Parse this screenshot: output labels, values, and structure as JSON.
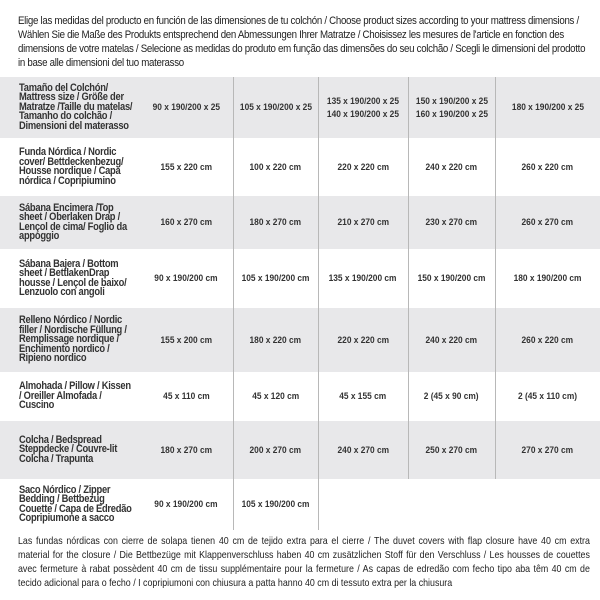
{
  "intro": "Elige las medidas del producto en función de las dimensiones de tu colchón / Choose product sizes according to your mattress dimensions / Wählen Sie die Maße des Produkts entsprechend den Abmessungen Ihrer Matratze / Choisissez les mesures de l'article en fonction des dimensions de votre matelas / Selecione as medidas do produto em função das dimensões do seu colchão / Scegli le dimensioni del prodotto in base alle dimensioni del tuo materasso",
  "table": {
    "header": {
      "label": "Tamaño del Colchón/ Mattress size / Größe der Matratze /Taille du matelas/ Tamanho do colchão / Dimensioni del materasso",
      "cols": [
        "90 x 190/200 x 25",
        "105 x 190/200 x 25",
        "135 x 190/200 x 25\n140 x 190/200 x 25",
        "150 x 190/200 x 25\n160 x 190/200 x 25",
        "180 x 190/200 x 25"
      ]
    },
    "rows": [
      {
        "label": "Funda Nórdica /  Nordic cover/ Bettdeckenbezug/ Housse nordique  / Capa nórdica / Copripiumino",
        "values": [
          "155 x 220 cm",
          "100 x 220 cm",
          "220 x 220 cm",
          "240 x 220 cm",
          "260 x 220 cm"
        ]
      },
      {
        "label": "Sábana Encimera /Top sheet / Oberlaken Drap / Lençol de cima/ Foglio da appoggio",
        "values": [
          "160 x 270 cm",
          "180 x 270 cm",
          "210 x 270 cm",
          "230 x 270 cm",
          "260 x 270 cm"
        ]
      },
      {
        "label": "Sábana Bajera / Bottom sheet / BettlakenDrap housse / Lençol de baixo/ Lenzuolo con angoli",
        "values": [
          "90 x 190/200 cm",
          "105 x 190/200 cm",
          "135 x 190/200 cm",
          "150 x 190/200 cm",
          "180 x 190/200 cm"
        ]
      },
      {
        "label": "Relleno Nórdico / Nordic filler / Nordische Füllung / Remplissage nordique / Enchimento nordico / Ripieno nordico",
        "values": [
          "155 x 200 cm",
          "180 x 220 cm",
          "220 x 220 cm",
          "240 x 220 cm",
          "260 x 220 cm"
        ]
      },
      {
        "label": "Almohada  / Pillow / Kissen / Oreiller Almofada / Cuscino",
        "values": [
          "45 x 110 cm",
          "45 x 120 cm",
          "45 x 155 cm",
          "2 (45 x 90 cm)",
          "2 (45 x 110 cm)"
        ]
      },
      {
        "label": "Colcha / Bedspread Steppdecke / Couvre-lit Colcha / Trapunta",
        "values": [
          "180 x 270 cm",
          "200 x 270 cm",
          "240 x 270 cm",
          "250 x 270 cm",
          "270 x 270 cm"
        ]
      },
      {
        "label": "Saco Nórdico / Zipper Bedding / Bettbezug Couette  / Capa de Edredão Copripiumone a sacco",
        "values": [
          "90 x 190/200 cm",
          "105 x 190/200 cm",
          "",
          "",
          ""
        ]
      }
    ]
  },
  "footnote": "Las fundas nórdicas con cierre de solapa tienen 40 cm de tejido extra para el cierre  / The duvet covers with flap closure have 40 cm extra material for the closure / Die Bettbezüge mit Klappenverschluss haben 40 cm zusätzlichen Stoff für den Verschluss / Les housses de couettes avec fermeture à rabat possèdent 40 cm de tissu supplémentaire pour la fermeture / As capas de edredão com fecho tipo aba têm 40 cm de tecido adicional para o fecho / I copripiumoni con chiusura a patta hanno 40 cm di tessuto extra per la chiusura"
}
